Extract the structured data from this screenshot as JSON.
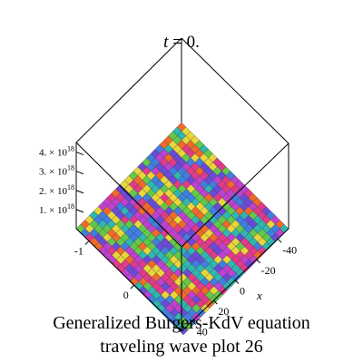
{
  "caption": {
    "line1": "Generalized Burgers-KdV equation",
    "line2": "traveling wave plot 26"
  },
  "chart_data": {
    "type": "surface3d",
    "title": "t = 0.",
    "title_var": "t",
    "title_rest": " = 0.",
    "xlabel": "x",
    "z_ticks": [
      {
        "mantissa": "1.",
        "exp": "18",
        "value": 1e+18
      },
      {
        "mantissa": "2.",
        "exp": "18",
        "value": 2e+18
      },
      {
        "mantissa": "3.",
        "exp": "18",
        "value": 3e+18
      },
      {
        "mantissa": "4.",
        "exp": "18",
        "value": 4e+18
      }
    ],
    "z_tick_suffix": " × 10",
    "x_ticks": [
      "-40",
      "-20",
      "0",
      "20",
      "40"
    ],
    "y_ticks": [
      "-1",
      "0"
    ],
    "xlim": [
      -40,
      40
    ],
    "ylim": [
      -1,
      1
    ],
    "zlim": [
      0,
      4.5e+18
    ],
    "grid": 24,
    "colormap": [
      "#e23a8a",
      "#f06a2a",
      "#e9d63a",
      "#63c94a",
      "#2fb7b0",
      "#3f7fe0",
      "#6a4ad8",
      "#c040d0"
    ],
    "surface_note_values": "surface height near zero over the plotted domain; colored by phase"
  }
}
